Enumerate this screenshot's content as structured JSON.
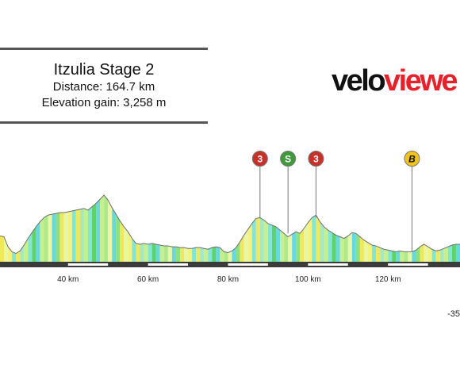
{
  "header": {
    "title": "Itzulia Stage 2",
    "distance": "Distance: 164.7 km",
    "elevation": "Elevation gain: 3,258 m"
  },
  "logo": {
    "part1": "velo",
    "part2": "viewe"
  },
  "note": "-35",
  "chart_data": {
    "type": "area",
    "x_unit": "km",
    "xlim": [
      23,
      138
    ],
    "ticks": [
      {
        "km": 40,
        "label": "40 km"
      },
      {
        "km": 60,
        "label": "60 km"
      },
      {
        "km": 80,
        "label": "80 km"
      },
      {
        "km": 100,
        "label": "100 km"
      },
      {
        "km": 120,
        "label": "120 km"
      }
    ],
    "profile": [
      [
        23,
        0.31
      ],
      [
        24,
        0.3
      ],
      [
        25,
        0.18
      ],
      [
        26,
        0.12
      ],
      [
        27,
        0.1
      ],
      [
        28,
        0.13
      ],
      [
        29,
        0.2
      ],
      [
        30,
        0.28
      ],
      [
        31,
        0.35
      ],
      [
        32,
        0.42
      ],
      [
        33,
        0.48
      ],
      [
        34,
        0.53
      ],
      [
        35,
        0.56
      ],
      [
        36,
        0.57
      ],
      [
        37,
        0.58
      ],
      [
        38,
        0.59
      ],
      [
        39,
        0.59
      ],
      [
        40,
        0.6
      ],
      [
        41,
        0.61
      ],
      [
        42,
        0.62
      ],
      [
        43,
        0.63
      ],
      [
        44,
        0.64
      ],
      [
        45,
        0.62
      ],
      [
        46,
        0.66
      ],
      [
        47,
        0.7
      ],
      [
        48,
        0.75
      ],
      [
        49,
        0.8
      ],
      [
        50,
        0.74
      ],
      [
        51,
        0.65
      ],
      [
        52,
        0.57
      ],
      [
        53,
        0.49
      ],
      [
        54,
        0.42
      ],
      [
        55,
        0.36
      ],
      [
        56,
        0.28
      ],
      [
        57,
        0.22
      ],
      [
        58,
        0.21
      ],
      [
        59,
        0.22
      ],
      [
        60,
        0.21
      ],
      [
        61,
        0.22
      ],
      [
        62,
        0.21
      ],
      [
        63,
        0.2
      ],
      [
        64,
        0.19
      ],
      [
        65,
        0.19
      ],
      [
        66,
        0.18
      ],
      [
        67,
        0.18
      ],
      [
        68,
        0.17
      ],
      [
        69,
        0.17
      ],
      [
        70,
        0.16
      ],
      [
        71,
        0.16
      ],
      [
        72,
        0.17
      ],
      [
        73,
        0.17
      ],
      [
        74,
        0.16
      ],
      [
        75,
        0.15
      ],
      [
        76,
        0.17
      ],
      [
        77,
        0.18
      ],
      [
        78,
        0.17
      ],
      [
        79,
        0.12
      ],
      [
        80,
        0.11
      ],
      [
        81,
        0.13
      ],
      [
        82,
        0.17
      ],
      [
        83,
        0.24
      ],
      [
        84,
        0.32
      ],
      [
        85,
        0.39
      ],
      [
        86,
        0.46
      ],
      [
        87,
        0.52
      ],
      [
        88,
        0.53
      ],
      [
        89,
        0.5
      ],
      [
        90,
        0.46
      ],
      [
        91,
        0.44
      ],
      [
        92,
        0.42
      ],
      [
        93,
        0.38
      ],
      [
        94,
        0.34
      ],
      [
        95,
        0.3
      ],
      [
        96,
        0.33
      ],
      [
        97,
        0.36
      ],
      [
        98,
        0.34
      ],
      [
        99,
        0.4
      ],
      [
        100,
        0.47
      ],
      [
        101,
        0.53
      ],
      [
        102,
        0.56
      ],
      [
        103,
        0.48
      ],
      [
        104,
        0.42
      ],
      [
        105,
        0.38
      ],
      [
        106,
        0.35
      ],
      [
        107,
        0.32
      ],
      [
        108,
        0.3
      ],
      [
        109,
        0.28
      ],
      [
        110,
        0.31
      ],
      [
        111,
        0.35
      ],
      [
        112,
        0.34
      ],
      [
        113,
        0.3
      ],
      [
        114,
        0.26
      ],
      [
        115,
        0.23
      ],
      [
        116,
        0.2
      ],
      [
        117,
        0.19
      ],
      [
        118,
        0.17
      ],
      [
        119,
        0.15
      ],
      [
        120,
        0.14
      ],
      [
        121,
        0.13
      ],
      [
        122,
        0.12
      ],
      [
        123,
        0.13
      ],
      [
        124,
        0.12
      ],
      [
        125,
        0.12
      ],
      [
        126,
        0.12
      ],
      [
        127,
        0.14
      ],
      [
        128,
        0.18
      ],
      [
        129,
        0.21
      ],
      [
        130,
        0.18
      ],
      [
        131,
        0.15
      ],
      [
        132,
        0.13
      ],
      [
        133,
        0.14
      ],
      [
        134,
        0.16
      ],
      [
        135,
        0.18
      ],
      [
        136,
        0.2
      ],
      [
        137,
        0.21
      ],
      [
        138,
        0.21
      ]
    ],
    "gradient_colors": [
      "#8fe07a",
      "#c6ef8e",
      "#f5f27a",
      "#66d9e0",
      "#a6e8c2",
      "#e8f6a8",
      "#5fd36a",
      "#f0e85a",
      "#aeea8a",
      "#7fe6d8"
    ],
    "markers": [
      {
        "label": "3",
        "km": 88,
        "color": "#c8302a"
      },
      {
        "label": "S",
        "km": 95,
        "color": "#3e9a3a"
      },
      {
        "label": "3",
        "km": 102,
        "color": "#c8302a"
      },
      {
        "label": "B",
        "km": 126,
        "color": "#f2c318"
      }
    ]
  }
}
